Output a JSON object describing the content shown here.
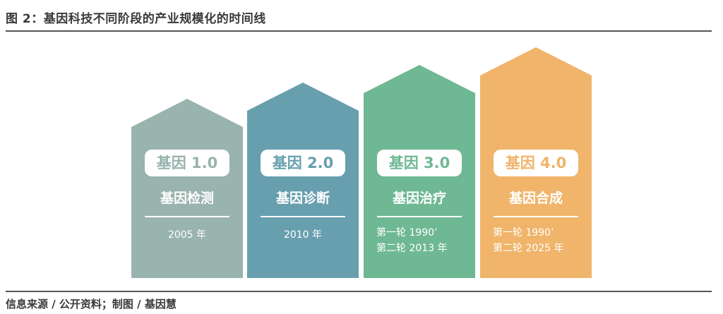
{
  "title": "图 2：基因科技不同阶段的产业规模化的时间线",
  "source": "信息来源 / 公开资料；制图 / 基因慧",
  "stages": [
    {
      "badge": "基因 1.0",
      "name": "基因检测",
      "lines": [
        "2005 年"
      ],
      "color": "#99b3ae"
    },
    {
      "badge": "基因 2.0",
      "name": "基因诊断",
      "lines": [
        "2010 年"
      ],
      "color": "#679fae"
    },
    {
      "badge": "基因 3.0",
      "name": "基因治疗",
      "lines": [
        "第一轮 1990’",
        "第二轮 2013 年"
      ],
      "color": "#6fb894"
    },
    {
      "badge": "基因 4.0",
      "name": "基因合成",
      "lines": [
        "第一轮 1990’",
        "第二轮 2025 年"
      ],
      "color": "#f0b46a"
    }
  ]
}
